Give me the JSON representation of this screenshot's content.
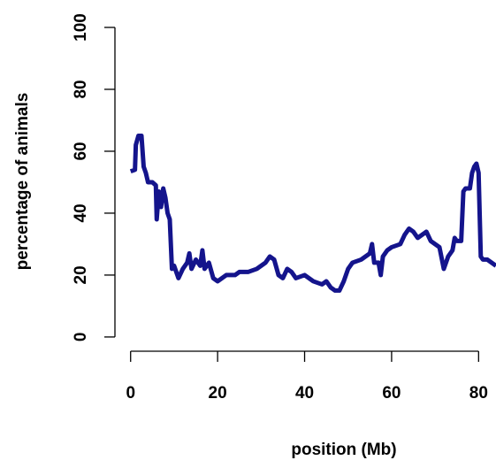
{
  "chart_data": {
    "type": "line",
    "x_label": "position (Mb)",
    "y_label": "percentage of animals",
    "x": [
      0,
      1,
      1.2,
      1.8,
      2.5,
      3,
      3.5,
      4,
      5,
      5.8,
      6,
      6.5,
      7,
      7.5,
      8,
      8.5,
      9,
      9.5,
      10,
      11,
      12,
      13,
      13.5,
      14,
      15,
      16,
      16.5,
      17,
      18,
      19,
      20,
      21,
      22,
      24,
      25,
      27,
      29,
      31,
      32,
      33,
      34,
      35,
      36,
      37,
      38,
      40,
      42,
      44,
      45,
      46,
      47,
      48,
      49,
      50,
      51,
      53,
      54,
      55,
      55.5,
      56,
      57,
      57.5,
      58,
      59,
      60,
      62,
      63,
      64,
      65,
      66,
      67,
      68,
      69,
      70,
      71,
      72,
      73,
      74,
      74.5,
      75,
      76,
      76.5,
      77,
      78,
      78.5,
      79,
      79.5,
      80,
      80.5,
      81,
      82,
      83,
      84
    ],
    "series": [
      {
        "name": "percentage",
        "color": "#14148c",
        "values": [
          53.5,
          54,
          62,
          65,
          65,
          55,
          53,
          50,
          50,
          49,
          38,
          47,
          42,
          48,
          45,
          40,
          38,
          22,
          23,
          19,
          22,
          24,
          27,
          22,
          25,
          23,
          28,
          22,
          24,
          19,
          18,
          19,
          20,
          20,
          21,
          21,
          22,
          24,
          26,
          25,
          20,
          19,
          22,
          21,
          19,
          20,
          18,
          17,
          18,
          16,
          15,
          15,
          18,
          22,
          24,
          25,
          26,
          27,
          30,
          24,
          24,
          20,
          26,
          28,
          29,
          30,
          33,
          35,
          34,
          32,
          33,
          34,
          31,
          30,
          29,
          22,
          26,
          28,
          32,
          31,
          31,
          47,
          48,
          48,
          53,
          55,
          56,
          53,
          26,
          25,
          25,
          24,
          23
        ]
      }
    ],
    "xlim": [
      -3.4,
      84
    ],
    "ylim": [
      -4.6,
      104
    ],
    "xticks": [
      0,
      20,
      40,
      60,
      80
    ],
    "yticks": [
      0,
      20,
      40,
      60,
      80,
      100
    ]
  }
}
